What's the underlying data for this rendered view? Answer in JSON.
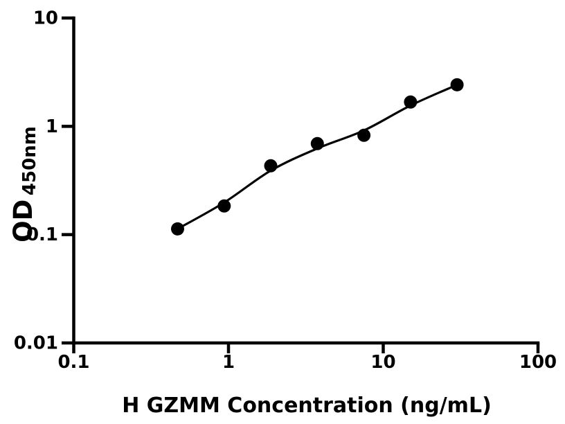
{
  "figure": {
    "background_color": "#ffffff",
    "ink_color": "#000000"
  },
  "chart_data": {
    "type": "scatter",
    "title": "",
    "xlabel": "H GZMM Concentration (ng/mL)",
    "ylabel_main": "OD",
    "ylabel_sub": "450nm",
    "x_scale": "log",
    "y_scale": "log",
    "xlim": [
      0.1,
      100
    ],
    "ylim": [
      0.01,
      10
    ],
    "grid": false,
    "legend": null,
    "x_ticks": [
      {
        "value": 0.1,
        "label": "0.1"
      },
      {
        "value": 1,
        "label": "1"
      },
      {
        "value": 10,
        "label": "10"
      },
      {
        "value": 100,
        "label": "100"
      }
    ],
    "y_ticks": [
      {
        "value": 0.01,
        "label": "0.01"
      },
      {
        "value": 0.1,
        "label": "0.1"
      },
      {
        "value": 1,
        "label": "1"
      },
      {
        "value": 10,
        "label": "10"
      }
    ],
    "series": [
      {
        "name": "standard-points",
        "marker": "circle",
        "color": "#000000",
        "x": [
          0.469,
          0.938,
          1.875,
          3.75,
          7.5,
          15,
          30
        ],
        "y": [
          0.113,
          0.184,
          0.432,
          0.692,
          0.826,
          1.675,
          2.417
        ]
      }
    ],
    "fit_curve": {
      "name": "standard-curve-fit",
      "color": "#000000",
      "x": [
        0.469,
        0.938,
        1.875,
        3.75,
        7.5,
        15,
        30
      ],
      "y": [
        0.113,
        0.198,
        0.39,
        0.625,
        0.916,
        1.556,
        2.417
      ]
    }
  }
}
